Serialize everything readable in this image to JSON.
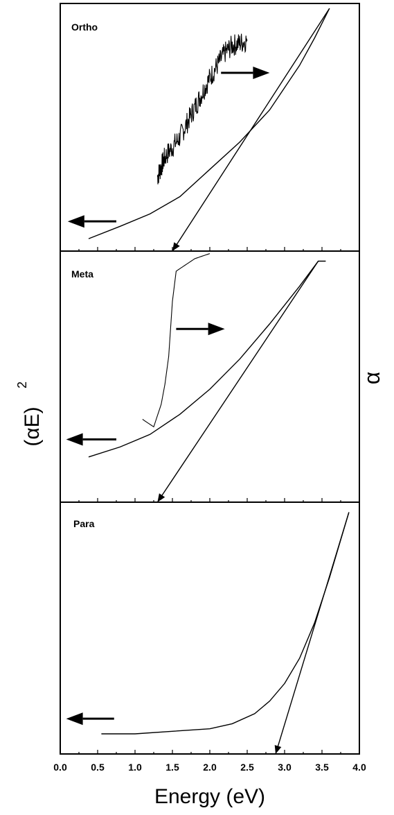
{
  "chart_data": [
    {
      "type": "line",
      "panel_label": "Ortho",
      "xlim": [
        0.0,
        4.0
      ],
      "series": [
        {
          "x": [
            0.38,
            0.8,
            1.2,
            1.6,
            2.0,
            2.4,
            2.8,
            3.0,
            3.2,
            3.4,
            3.6
          ],
          "y": [
            0.05,
            0.1,
            0.15,
            0.22,
            0.33,
            0.44,
            0.57,
            0.66,
            0.75,
            0.86,
            0.98
          ]
        },
        {
          "x": [
            1.3,
            1.35,
            1.4,
            1.5,
            1.6,
            1.7,
            1.8,
            1.9,
            2.0,
            2.1,
            2.2,
            2.3,
            2.4,
            2.5
          ],
          "y": [
            0.3,
            0.34,
            0.38,
            0.42,
            0.46,
            0.52,
            0.58,
            0.64,
            0.7,
            0.75,
            0.8,
            0.83,
            0.84,
            0.85
          ]
        }
      ],
      "tangent": {
        "x": [
          3.6,
          1.5
        ],
        "y": [
          0.98,
          0.0
        ]
      },
      "arrows": [
        {
          "direction": "left",
          "x_from": 0.75,
          "x_to": 0.1,
          "y": 0.12
        },
        {
          "direction": "right",
          "x_from": 2.15,
          "x_to": 2.8,
          "y": 0.72
        }
      ]
    },
    {
      "type": "line",
      "panel_label": "Meta",
      "xlim": [
        0.0,
        4.0
      ],
      "series": [
        {
          "x": [
            0.38,
            0.8,
            1.2,
            1.6,
            2.0,
            2.4,
            2.8,
            3.2,
            3.45,
            3.55
          ],
          "y": [
            0.18,
            0.22,
            0.27,
            0.35,
            0.45,
            0.57,
            0.71,
            0.86,
            0.96,
            0.96
          ]
        },
        {
          "x": [
            1.1,
            1.15,
            1.25,
            1.35,
            1.4,
            1.45,
            1.5,
            1.55,
            1.6,
            1.7,
            1.8,
            1.9,
            2.0
          ],
          "y": [
            0.33,
            0.32,
            0.3,
            0.39,
            0.47,
            0.58,
            0.8,
            0.92,
            0.93,
            0.95,
            0.97,
            0.98,
            0.99
          ]
        }
      ],
      "tangent": {
        "x": [
          3.45,
          1.3
        ],
        "y": [
          0.96,
          0.0
        ]
      },
      "arrows": [
        {
          "direction": "left",
          "x_from": 0.75,
          "x_to": 0.08,
          "y": 0.25
        },
        {
          "direction": "right",
          "x_from": 1.55,
          "x_to": 2.2,
          "y": 0.69
        }
      ]
    },
    {
      "type": "line",
      "panel_label": "Para",
      "xlim": [
        0.0,
        4.0
      ],
      "series": [
        {
          "x": [
            0.55,
            1.0,
            1.5,
            2.0,
            2.3,
            2.6,
            2.8,
            3.0,
            3.2,
            3.4,
            3.6,
            3.8,
            3.86
          ],
          "y": [
            0.08,
            0.08,
            0.09,
            0.1,
            0.12,
            0.16,
            0.21,
            0.28,
            0.38,
            0.52,
            0.7,
            0.9,
            0.96
          ]
        }
      ],
      "tangent": {
        "x": [
          3.86,
          2.88
        ],
        "y": [
          0.96,
          0.0
        ]
      },
      "arrows": [
        {
          "direction": "left",
          "x_from": 0.72,
          "x_to": 0.08,
          "y": 0.14
        }
      ]
    }
  ],
  "x_ticks": [
    "0.0",
    "0.5",
    "1.0",
    "1.5",
    "2.0",
    "2.5",
    "3.0",
    "3.5",
    "4.0"
  ],
  "xlabel": "Energy (eV)",
  "ylabel_main": "(αE)",
  "ylabel_sup": "2",
  "ylabel_right": "α",
  "panel_labels": {
    "p0": "Ortho",
    "p1": "Meta",
    "p2": "Para"
  }
}
